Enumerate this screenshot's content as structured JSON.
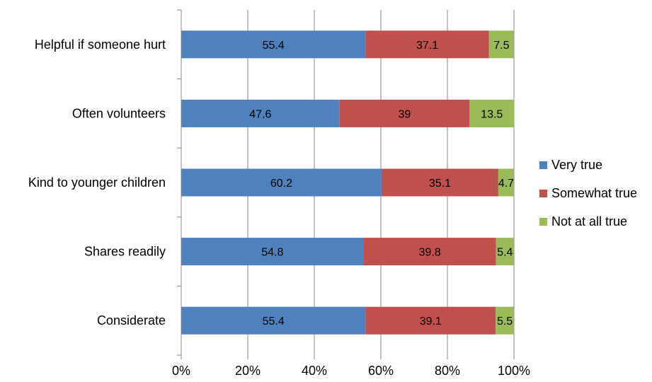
{
  "chart_data": {
    "type": "bar",
    "orientation": "horizontal",
    "stacked": true,
    "percent_stacked": true,
    "categories": [
      "Helpful if someone hurt",
      "Often volunteers",
      "Kind to younger children",
      "Shares readily",
      "Considerate"
    ],
    "series": [
      {
        "name": "Very true",
        "color": "#4F81BD",
        "values": [
          55.4,
          47.6,
          60.2,
          54.8,
          55.4
        ]
      },
      {
        "name": "Somewhat true",
        "color": "#C0504D",
        "values": [
          37.1,
          39,
          35.1,
          39.8,
          39.1
        ]
      },
      {
        "name": "Not at all true",
        "color": "#9BBB59",
        "values": [
          7.5,
          13.5,
          4.7,
          5.4,
          5.5
        ]
      }
    ],
    "data_labels": [
      [
        "55.4",
        "47.6",
        "60.2",
        "54.8",
        "55.4"
      ],
      [
        "37.1",
        "39",
        "35.1",
        "39.8",
        "39.1"
      ],
      [
        "7.5",
        "13.5",
        "4.7",
        "5.4",
        "5.5"
      ]
    ],
    "x_ticks": [
      "0%",
      "20%",
      "40%",
      "60%",
      "80%",
      "100%"
    ],
    "xlim": [
      0,
      100
    ],
    "grid": true,
    "legend_position": "right",
    "title": "",
    "xlabel": "",
    "ylabel": ""
  }
}
